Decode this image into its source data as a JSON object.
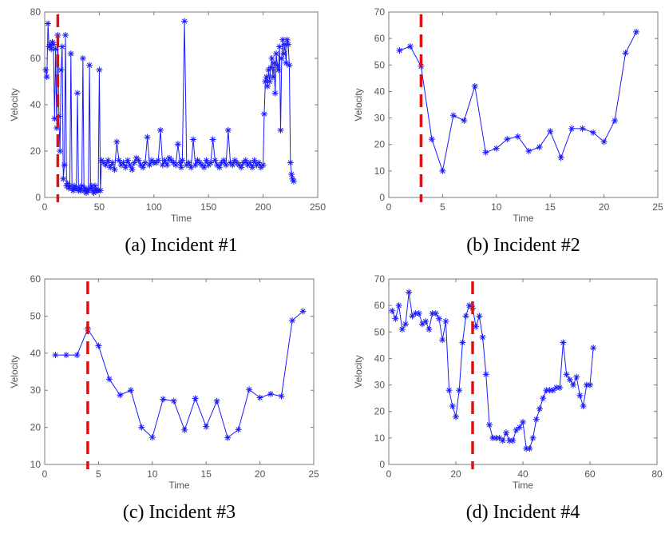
{
  "figure": {
    "captions": [
      "(a) Incident #1",
      "(b) Incident #2",
      "(c) Incident #3",
      "(d) Incident #4"
    ]
  },
  "chart_data": [
    {
      "type": "line",
      "xlabel": "Time",
      "ylabel": "Velocity",
      "xlim": [
        0,
        250
      ],
      "ylim": [
        0,
        80
      ],
      "xticks": [
        0,
        50,
        100,
        150,
        200,
        250
      ],
      "yticks": [
        0,
        20,
        40,
        60,
        80
      ],
      "incident_time": 12,
      "series": [
        {
          "x": [
            1,
            2,
            3,
            4,
            5,
            6,
            7,
            8,
            9,
            10,
            11,
            12,
            13,
            14,
            15,
            16,
            17,
            18,
            19,
            20,
            21,
            22,
            23,
            24,
            25,
            26,
            27,
            28,
            29,
            30,
            31,
            32,
            33,
            34,
            35,
            36,
            37,
            38,
            39,
            40,
            41,
            42,
            43,
            44,
            45,
            46,
            47,
            48,
            49,
            50,
            51,
            52,
            54,
            56,
            58,
            60,
            62,
            64,
            66,
            68,
            70,
            72,
            74,
            76,
            78,
            80,
            82,
            84,
            86,
            88,
            90,
            92,
            94,
            96,
            98,
            100,
            102,
            104,
            106,
            108,
            110,
            112,
            114,
            116,
            118,
            120,
            122,
            124,
            125,
            126,
            128,
            130,
            132,
            134,
            136,
            138,
            140,
            142,
            144,
            146,
            148,
            150,
            152,
            154,
            156,
            158,
            160,
            162,
            164,
            166,
            168,
            170,
            172,
            174,
            176,
            178,
            180,
            182,
            184,
            186,
            188,
            190,
            192,
            194,
            196,
            198,
            200,
            201,
            202,
            203,
            204,
            205,
            206,
            207,
            208,
            209,
            210,
            211,
            212,
            213,
            214,
            215,
            216,
            217,
            218,
            219,
            220,
            221,
            222,
            223,
            224,
            225,
            226,
            227,
            228
          ],
          "y": [
            55,
            52,
            75,
            65,
            66,
            64,
            67,
            66,
            34,
            64,
            30,
            70,
            35,
            20,
            55,
            65,
            8,
            14,
            70,
            5,
            6,
            4,
            5,
            62,
            4,
            3,
            5,
            4,
            4,
            45,
            3,
            4,
            3,
            5,
            60,
            3,
            4,
            2,
            3,
            3,
            57,
            4,
            5,
            3,
            2,
            5,
            3,
            3,
            3,
            55,
            3,
            16,
            15,
            14,
            16,
            13,
            15,
            12,
            24,
            16,
            14,
            15,
            13,
            16,
            14,
            12,
            15,
            17,
            16,
            14,
            13,
            15,
            26,
            14,
            16,
            15,
            15,
            16,
            29,
            14,
            16,
            14,
            17,
            16,
            15,
            14,
            23,
            15,
            13,
            16,
            76,
            14,
            15,
            13,
            25,
            14,
            16,
            15,
            14,
            13,
            16,
            14,
            15,
            25,
            16,
            14,
            13,
            15,
            16,
            14,
            29,
            15,
            14,
            16,
            15,
            14,
            13,
            15,
            16,
            14,
            15,
            13,
            16,
            14,
            15,
            13,
            14,
            36,
            50,
            52,
            48,
            55,
            50,
            56,
            60,
            52,
            58,
            45,
            62,
            57,
            55,
            65,
            29,
            60,
            68,
            62,
            66,
            58,
            68,
            66,
            57,
            15,
            10,
            8,
            7
          ],
          "name": ""
        }
      ]
    },
    {
      "type": "line",
      "xlabel": "Time",
      "ylabel": "Velocity",
      "xlim": [
        0,
        25
      ],
      "ylim": [
        0,
        70
      ],
      "xticks": [
        0,
        5,
        10,
        15,
        20,
        25
      ],
      "yticks": [
        0,
        10,
        20,
        30,
        40,
        50,
        60,
        70
      ],
      "incident_time": 3,
      "series": [
        {
          "x": [
            1,
            2,
            3,
            4,
            5,
            6,
            7,
            8,
            9,
            10,
            11,
            12,
            13,
            14,
            15,
            16,
            17,
            18,
            19,
            20,
            21,
            22,
            23
          ],
          "y": [
            55.5,
            57,
            49.5,
            22,
            10,
            31,
            29,
            42,
            17,
            18.5,
            22,
            23,
            17.5,
            19,
            25,
            15,
            26,
            26,
            24.5,
            21,
            29,
            54.5,
            62.5
          ],
          "name": ""
        }
      ]
    },
    {
      "type": "line",
      "xlabel": "Time",
      "ylabel": "Velocity",
      "xlim": [
        0,
        25
      ],
      "ylim": [
        10,
        60
      ],
      "xticks": [
        0,
        5,
        10,
        15,
        20,
        25
      ],
      "yticks": [
        10,
        20,
        30,
        40,
        50,
        60
      ],
      "incident_time": 4,
      "series": [
        {
          "x": [
            1,
            2,
            3,
            4,
            5,
            6,
            7,
            8,
            9,
            10,
            11,
            12,
            13,
            14,
            15,
            16,
            17,
            18,
            19,
            20,
            21,
            22,
            23,
            24
          ],
          "y": [
            39.5,
            39.5,
            39.5,
            46.5,
            42,
            33,
            28.7,
            30,
            20,
            17.3,
            27.6,
            27.1,
            19.3,
            27.8,
            20.2,
            27.1,
            17.2,
            19.4,
            30.2,
            28,
            29,
            28.4,
            48.8,
            51.3
          ],
          "name": ""
        }
      ]
    },
    {
      "type": "line",
      "xlabel": "Time",
      "ylabel": "Velocity",
      "xlim": [
        0,
        80
      ],
      "ylim": [
        0,
        70
      ],
      "xticks": [
        0,
        20,
        40,
        60,
        80
      ],
      "yticks": [
        0,
        10,
        20,
        30,
        40,
        50,
        60,
        70
      ],
      "incident_time": 25,
      "series": [
        {
          "x": [
            1,
            2,
            3,
            4,
            5,
            6,
            7,
            8,
            9,
            10,
            11,
            12,
            13,
            14,
            15,
            16,
            17,
            18,
            19,
            20,
            21,
            22,
            23,
            24,
            25,
            26,
            27,
            28,
            29,
            30,
            31,
            32,
            33,
            34,
            35,
            36,
            37,
            38,
            39,
            40,
            41,
            42,
            43,
            44,
            45,
            46,
            47,
            48,
            49,
            50,
            51,
            52,
            53,
            54,
            55,
            56,
            57,
            58,
            59,
            60,
            61
          ],
          "y": [
            58,
            55,
            60,
            51,
            53,
            65,
            56,
            57,
            57,
            53,
            54,
            51,
            57,
            57,
            55,
            47,
            54,
            28,
            22,
            18,
            28,
            46,
            56,
            60,
            59,
            52,
            56,
            48,
            34,
            15,
            10,
            10,
            10,
            9,
            12,
            9,
            9,
            13,
            14,
            16,
            6,
            6,
            10,
            17,
            21,
            25,
            28,
            28,
            28,
            29,
            29,
            46,
            34,
            32,
            30,
            33,
            26,
            22,
            30,
            30,
            44
          ],
          "name": ""
        }
      ]
    }
  ]
}
